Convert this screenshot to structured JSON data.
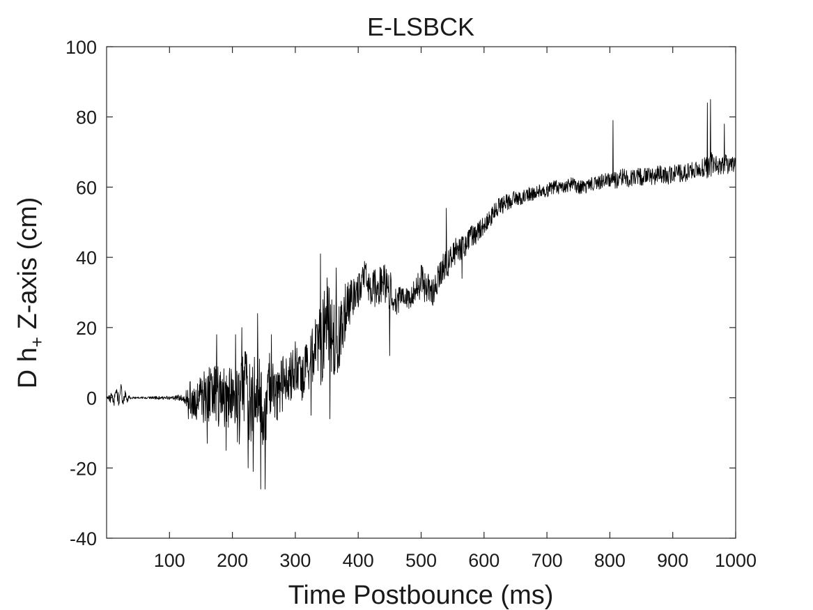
{
  "chart_data": {
    "type": "line",
    "title": "E-LSBCK",
    "xlabel": "Time Postbounce (ms)",
    "ylabel": {
      "prefix": "D h",
      "subscript": "+",
      "suffix": " Z-axis (cm)"
    },
    "xlim": [
      0,
      1000
    ],
    "ylim": [
      -40,
      100
    ],
    "xticks": [
      100,
      200,
      300,
      400,
      500,
      600,
      700,
      800,
      900,
      1000
    ],
    "yticks": [
      -40,
      -20,
      0,
      20,
      40,
      60,
      80,
      100
    ],
    "grid": false,
    "line_color": "#000000",
    "series": [
      {
        "x": [
          0,
          10,
          20,
          30,
          40,
          50,
          60,
          70,
          80,
          90,
          100,
          110,
          120,
          130,
          140,
          150,
          160,
          170,
          180,
          190,
          200,
          210,
          220,
          230,
          240,
          250,
          260,
          270,
          280,
          290,
          300,
          310,
          320,
          330,
          340,
          350,
          360,
          370,
          380,
          390,
          400,
          410,
          420,
          430,
          440,
          450,
          460,
          470,
          480,
          490,
          500,
          510,
          520,
          530,
          540,
          550,
          560,
          570,
          580,
          590,
          600,
          610,
          620,
          630,
          640,
          650,
          660,
          670,
          680,
          690,
          700,
          710,
          720,
          730,
          740,
          750,
          760,
          770,
          780,
          790,
          800,
          810,
          820,
          830,
          840,
          850,
          860,
          870,
          880,
          890,
          900,
          910,
          920,
          930,
          940,
          950,
          960,
          970,
          980,
          990,
          1000
        ],
        "y": [
          0,
          0,
          1,
          0,
          0,
          0,
          0,
          0,
          0,
          0,
          0,
          0,
          0,
          1,
          -2,
          -1,
          2,
          0,
          1,
          -2,
          2,
          -4,
          4,
          -3,
          3,
          -5,
          4,
          2,
          4,
          5,
          8,
          5,
          10,
          12,
          15,
          22,
          15,
          18,
          25,
          28,
          30,
          34,
          32,
          30,
          34,
          31,
          27,
          29,
          28,
          31,
          33,
          31,
          30,
          36,
          38,
          40,
          43,
          44,
          46,
          47,
          49,
          51,
          54,
          55,
          56,
          57,
          57,
          58,
          58,
          59,
          59,
          60,
          60,
          60,
          61,
          60,
          60,
          61,
          61,
          62,
          62,
          62,
          63,
          62,
          63,
          63,
          63,
          63,
          64,
          63,
          64,
          64,
          64,
          65,
          65,
          66,
          66,
          66,
          66,
          67,
          67
        ],
        "noise_amplitude": [
          0.1,
          2,
          2,
          1,
          0.3,
          0.3,
          0.3,
          0.3,
          0.5,
          0.5,
          0.5,
          0.8,
          1,
          4,
          6,
          7,
          8,
          9,
          9,
          10,
          10,
          11,
          11,
          12,
          12,
          11,
          10,
          9,
          8,
          7,
          7,
          7,
          8,
          10,
          12,
          13,
          12,
          10,
          8,
          6,
          5,
          5,
          6,
          6,
          6,
          6,
          4,
          3,
          3,
          4,
          5,
          5,
          4,
          4,
          4,
          4,
          4,
          4,
          3,
          3,
          3,
          2.5,
          2.5,
          2.5,
          2.5,
          2,
          2,
          2,
          2,
          2,
          2,
          2,
          2,
          2,
          2,
          2,
          2,
          2,
          2,
          2,
          2,
          2.5,
          2.5,
          2.5,
          2.5,
          2.5,
          2.5,
          2.5,
          2.5,
          2.5,
          2.5,
          2.5,
          2.5,
          2.5,
          2.5,
          3,
          4,
          3,
          3,
          3,
          3
        ],
        "spikes": [
          [
            130,
            -6
          ],
          [
            160,
            -13
          ],
          [
            175,
            18
          ],
          [
            190,
            -15
          ],
          [
            205,
            18
          ],
          [
            215,
            20
          ],
          [
            225,
            -20
          ],
          [
            233,
            -21
          ],
          [
            240,
            24
          ],
          [
            245,
            -26
          ],
          [
            252,
            -26
          ],
          [
            262,
            18
          ],
          [
            300,
            16
          ],
          [
            325,
            -5
          ],
          [
            340,
            41
          ],
          [
            355,
            -6
          ],
          [
            365,
            37
          ],
          [
            450,
            12
          ],
          [
            540,
            54
          ],
          [
            565,
            34
          ],
          [
            805,
            79
          ],
          [
            955,
            84
          ],
          [
            960,
            85
          ],
          [
            982,
            78
          ]
        ]
      }
    ]
  }
}
